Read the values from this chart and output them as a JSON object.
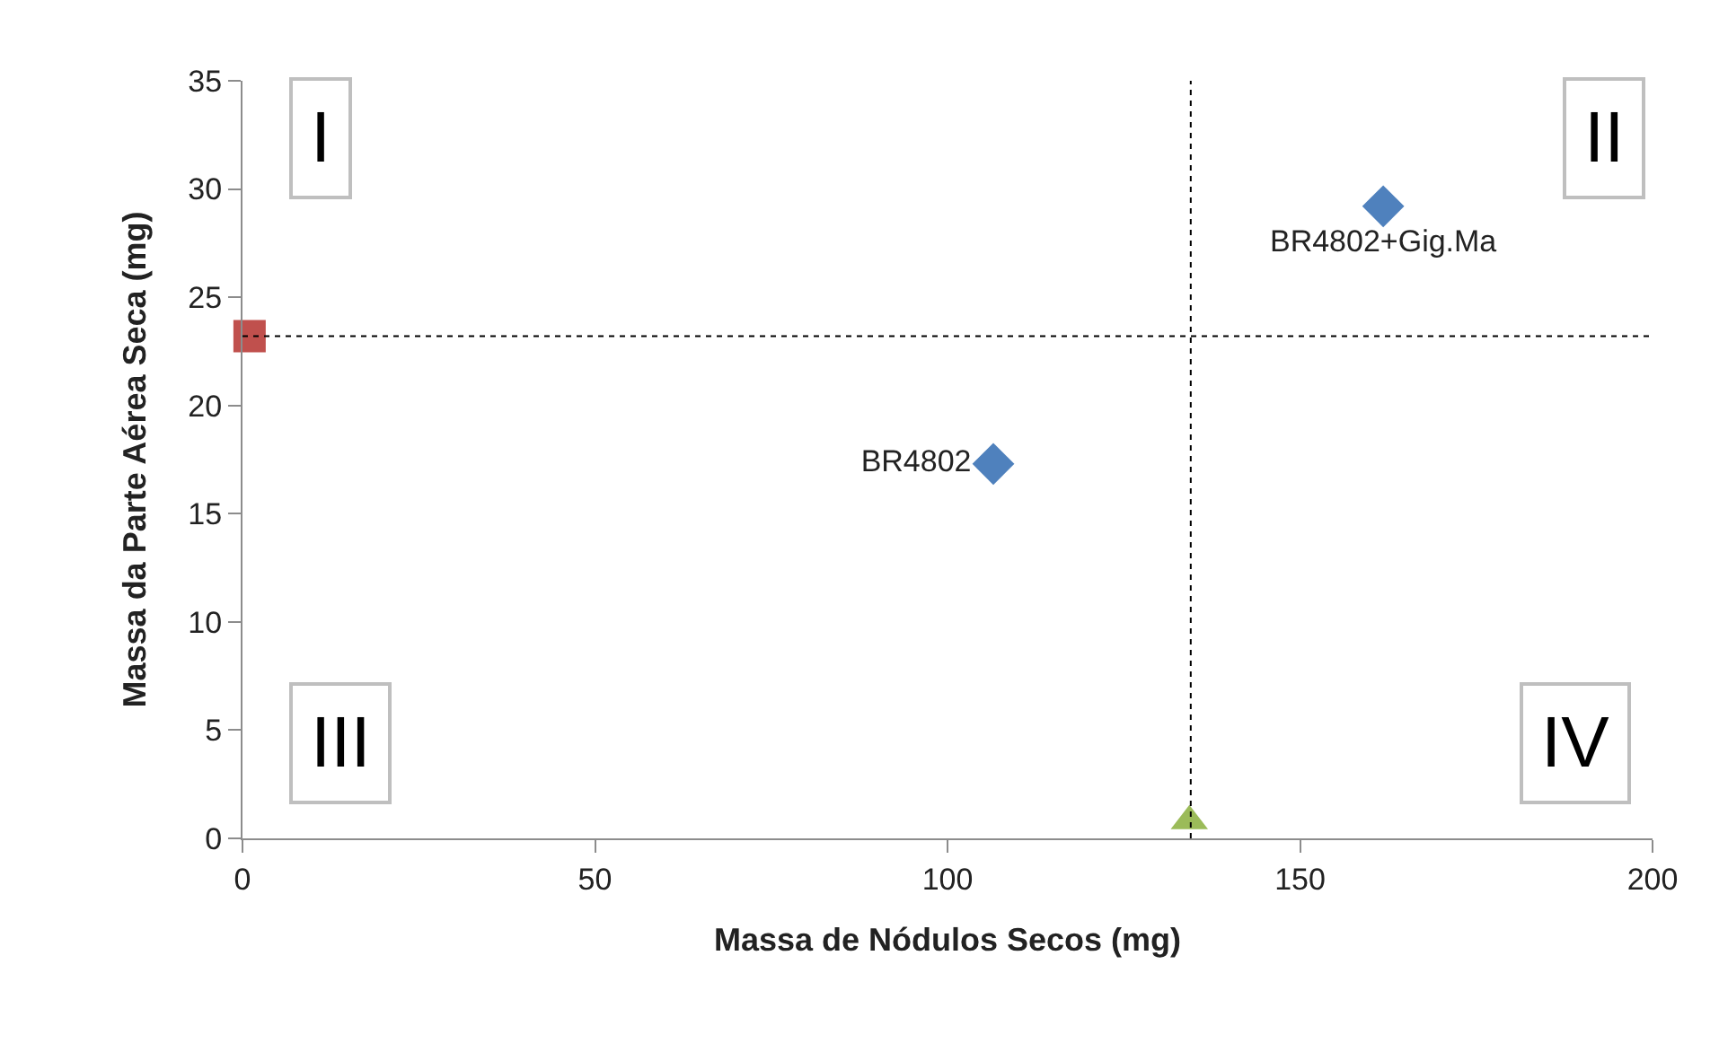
{
  "chart_data": {
    "type": "scatter",
    "xlabel": "Massa de Nódulos Secos (mg)",
    "ylabel": "Massa da Parte Aérea Seca (mg)",
    "series": [
      {
        "name": "BR4802",
        "color": "#4f81bd",
        "marker": "diamond",
        "x": [
          106.5
        ],
        "values": [
          17.3
        ]
      },
      {
        "name": "BR4802+Gig.Ma",
        "color": "#4f81bd",
        "marker": "diamond",
        "x": [
          161.8
        ],
        "values": [
          29.2
        ]
      },
      {
        "color": "#c0504d",
        "marker": "square",
        "x": [
          1.0
        ],
        "values": [
          23.2
        ]
      },
      {
        "color": "#9bbb59",
        "marker": "triangle",
        "x": [
          134.3
        ],
        "values": [
          0.8
        ]
      }
    ],
    "xlim": [
      0,
      200
    ],
    "xticks": [
      0,
      50,
      100,
      150,
      200
    ],
    "ylim": [
      0,
      35
    ],
    "yticks": [
      0,
      5,
      10,
      15,
      20,
      25,
      30,
      35
    ],
    "ref_lines": [
      {
        "axis": "y",
        "value": 23.2,
        "color": "#000000",
        "line_style": "dotted"
      },
      {
        "axis": "x",
        "value": 134.5,
        "color": "#000000",
        "line_style": "dotted"
      }
    ],
    "annotations": [
      "I",
      "II",
      "III",
      "IV"
    ],
    "grid": false,
    "legend": false
  }
}
